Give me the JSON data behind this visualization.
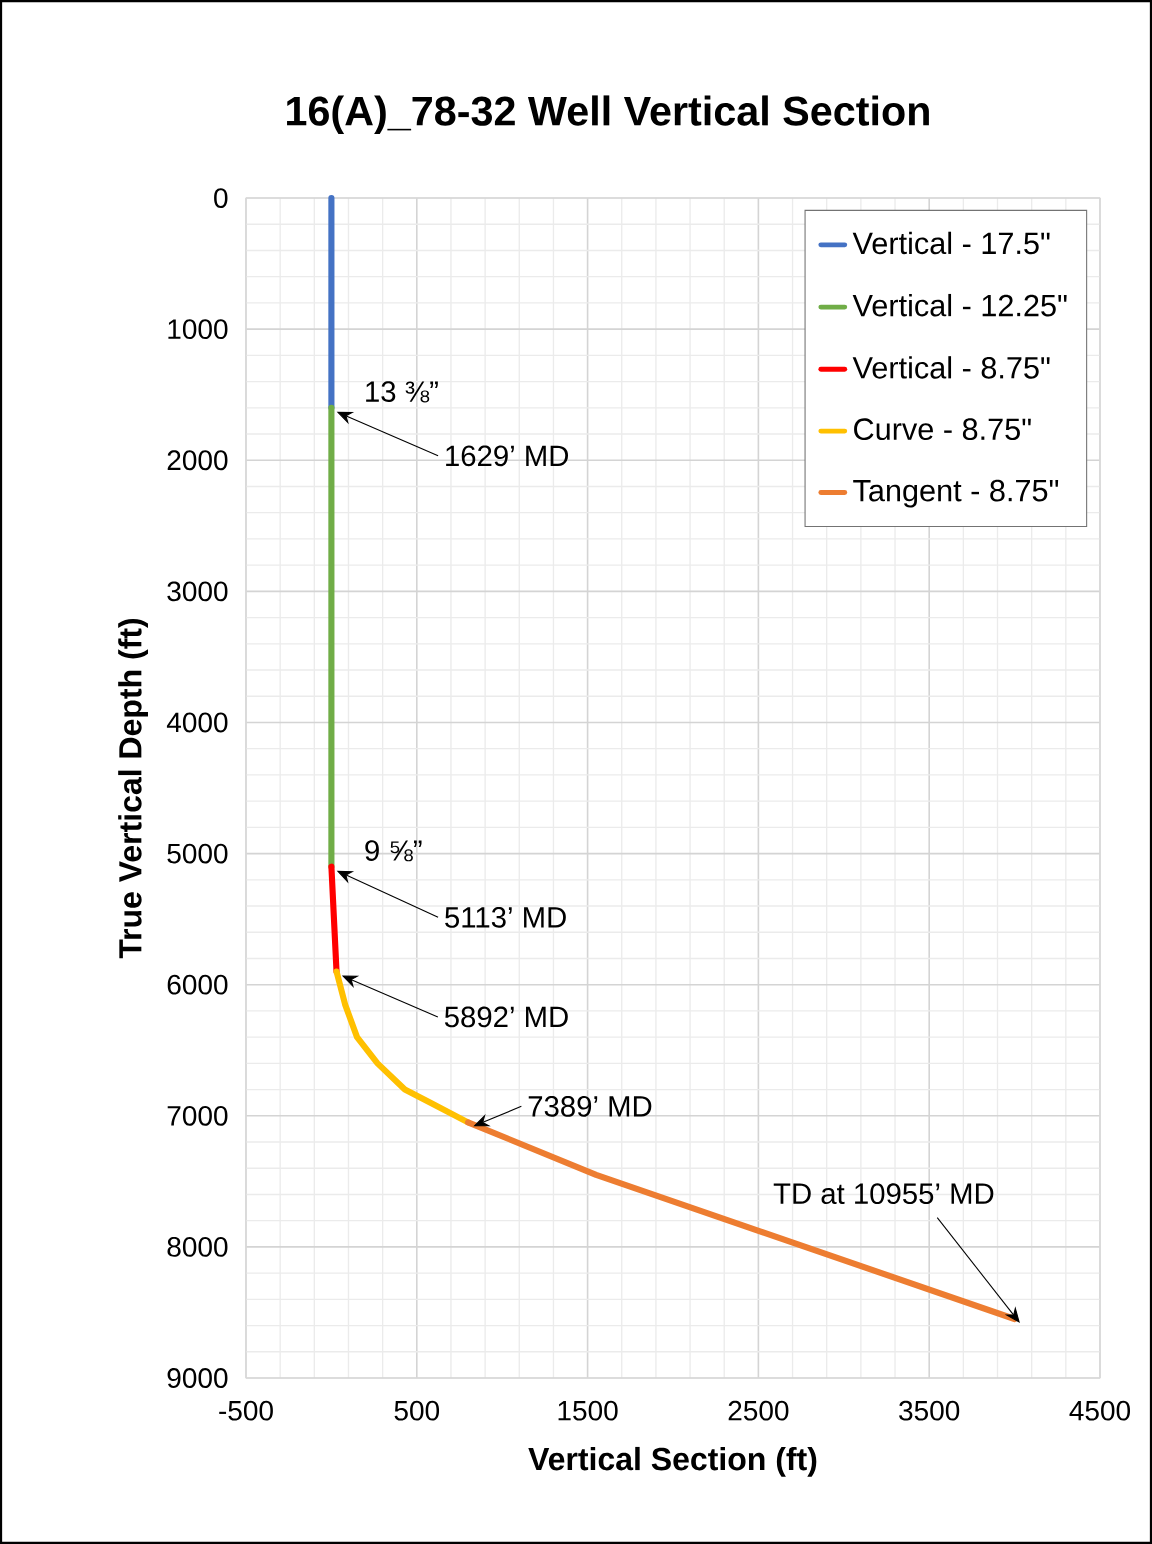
{
  "chart_data": {
    "type": "line",
    "title": "16(A)_78-32 Well Vertical Section",
    "xlabel": "Vertical Section (ft)",
    "ylabel": "True Vertical Depth (ft)",
    "xlim": [
      -500,
      4500
    ],
    "xticks": [
      -500,
      500,
      1500,
      2500,
      3500,
      4500
    ],
    "ylim": [
      9000,
      0
    ],
    "yticks": [
      0,
      1000,
      2000,
      3000,
      4000,
      5000,
      6000,
      7000,
      8000,
      9000
    ],
    "grid": true,
    "legend": "top right",
    "marker": "none",
    "line_style": "solid",
    "series": [
      {
        "name": "Vertical - 17.5\"",
        "color": "#4472c4",
        "x": [
          0,
          0
        ],
        "values": [
          0,
          1600
        ]
      },
      {
        "name": "Vertical - 12.25\"",
        "color": "#70ad47",
        "x": [
          0,
          0
        ],
        "values": [
          1600,
          5100
        ]
      },
      {
        "name": "Vertical - 8.75\"",
        "color": "#ff0000",
        "x": [
          0,
          30
        ],
        "values": [
          5100,
          5900
        ]
      },
      {
        "name": "Curve - 8.75\"",
        "color": "#ffc000",
        "x": [
          30,
          80,
          150,
          270,
          430,
          580,
          800
        ],
        "values": [
          5900,
          6150,
          6400,
          6600,
          6800,
          6900,
          7050
        ]
      },
      {
        "name": "Tangent - 8.75\"",
        "color": "#ed7d31",
        "x": [
          800,
          1550,
          4000
        ],
        "values": [
          7050,
          7450,
          8550
        ]
      }
    ],
    "annotations": [
      {
        "text": "13 ⅜”",
        "x": 0,
        "y": 1600
      },
      {
        "text": "1629’ MD",
        "x": 0,
        "y": 1600
      },
      {
        "text": "9 ⅝”",
        "x": 0,
        "y": 5100
      },
      {
        "text": "5113’ MD",
        "x": 0,
        "y": 5100
      },
      {
        "text": "5892’ MD",
        "x": 30,
        "y": 5900
      },
      {
        "text": "7389’ MD",
        "x": 800,
        "y": 7050
      },
      {
        "text": "TD at 10955’ MD",
        "x": 4000,
        "y": 8550
      }
    ]
  }
}
